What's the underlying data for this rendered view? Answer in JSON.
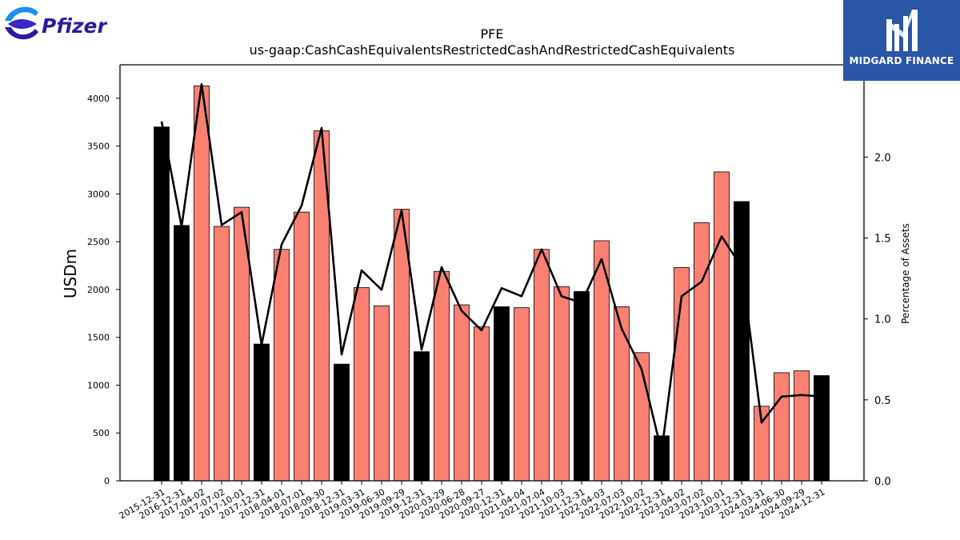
{
  "logos": {
    "left_brand": "Pfizer",
    "right_brand": "MIDGARD FINANCE"
  },
  "chart_data": {
    "type": "bar",
    "title": "PFE",
    "subtitle": "us-gaap:CashCashEquivalentsRestrictedCashAndRestrictedCashEquivalents",
    "ylabel": "USDm",
    "y2label": "Percentage of Assets",
    "ylim": [
      0,
      4350
    ],
    "y2lim": [
      0,
      2.57
    ],
    "yticks": [
      0,
      500,
      1000,
      1500,
      2000,
      2500,
      3000,
      3500,
      4000
    ],
    "y2ticks": [
      "0.0",
      "0.5",
      "1.0",
      "1.5",
      "2.0"
    ],
    "grid": false,
    "colors": {
      "annual": "#000000",
      "quarterly": "#fa8072",
      "line": "#000000"
    },
    "categories": [
      "2015-12-31",
      "2016-12-31",
      "2017-04-02",
      "2017-07-02",
      "2017-10-01",
      "2017-12-31",
      "2018-04-01",
      "2018-07-01",
      "2018-09-30",
      "2018-12-31",
      "2019-03-31",
      "2019-06-30",
      "2019-09-29",
      "2019-12-31",
      "2020-03-29",
      "2020-06-28",
      "2020-09-27",
      "2020-12-31",
      "2021-04-04",
      "2021-07-04",
      "2021-10-03",
      "2021-12-31",
      "2022-04-03",
      "2022-07-03",
      "2022-10-02",
      "2022-12-31",
      "2023-04-02",
      "2023-07-02",
      "2023-10-01",
      "2023-12-31",
      "2024-03-31",
      "2024-06-30",
      "2024-09-29",
      "2024-12-31"
    ],
    "series": [
      {
        "kind": "bar",
        "values": [
          3700,
          2670,
          4130,
          2660,
          2860,
          1430,
          2420,
          2810,
          3660,
          1220,
          2020,
          1830,
          2840,
          1350,
          2190,
          1840,
          1610,
          1820,
          1810,
          2420,
          2030,
          1980,
          2510,
          1820,
          1340,
          470,
          2230,
          2700,
          3230,
          2920,
          780,
          1130,
          1150,
          1100
        ],
        "period": [
          "annual",
          "annual",
          "quarterly",
          "quarterly",
          "quarterly",
          "annual",
          "quarterly",
          "quarterly",
          "quarterly",
          "annual",
          "quarterly",
          "quarterly",
          "quarterly",
          "annual",
          "quarterly",
          "quarterly",
          "quarterly",
          "annual",
          "quarterly",
          "quarterly",
          "quarterly",
          "annual",
          "quarterly",
          "quarterly",
          "quarterly",
          "annual",
          "quarterly",
          "quarterly",
          "quarterly",
          "annual",
          "quarterly",
          "quarterly",
          "quarterly",
          "annual"
        ]
      },
      {
        "kind": "line",
        "axis": "right",
        "values": [
          2.22,
          1.57,
          2.45,
          1.58,
          1.66,
          0.84,
          1.46,
          1.7,
          2.18,
          0.78,
          1.3,
          1.18,
          1.67,
          0.81,
          1.32,
          1.05,
          0.93,
          1.19,
          1.14,
          1.43,
          1.14,
          1.1,
          1.37,
          0.94,
          0.69,
          0.18,
          1.14,
          1.23,
          1.51,
          1.32,
          0.36,
          0.52,
          0.53,
          0.52
        ]
      }
    ]
  }
}
